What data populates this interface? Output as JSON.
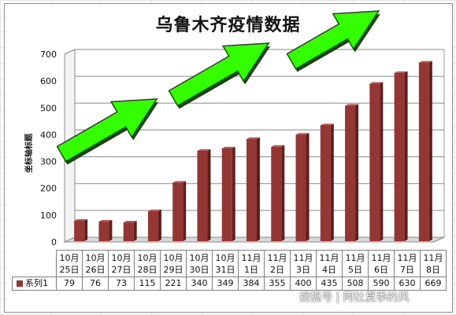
{
  "chart_data": {
    "type": "bar",
    "title": "乌鲁木齐疫情数据",
    "ylabel": "坐标轴标题",
    "xlabel": "",
    "ylim": [
      0,
      700
    ],
    "yticks": [
      0,
      100,
      200,
      300,
      400,
      500,
      600,
      700
    ],
    "grid": true,
    "legend": "data-table",
    "categories": [
      [
        "10月",
        "25日"
      ],
      [
        "10月",
        "26日"
      ],
      [
        "10月",
        "27日"
      ],
      [
        "10月",
        "28日"
      ],
      [
        "10月",
        "29日"
      ],
      [
        "10月",
        "30日"
      ],
      [
        "10月",
        "31日"
      ],
      [
        "11月",
        "1日"
      ],
      [
        "11月",
        "2日"
      ],
      [
        "11月",
        "3日"
      ],
      [
        "11月",
        "4日"
      ],
      [
        "11月",
        "5日"
      ],
      [
        "11月",
        "6日"
      ],
      [
        "11月",
        "7日"
      ],
      [
        "11月",
        "8日"
      ]
    ],
    "series": [
      {
        "name": "系列1",
        "color": "#943634",
        "values": [
          79,
          76,
          73,
          115,
          221,
          340,
          349,
          384,
          355,
          400,
          435,
          508,
          590,
          630,
          669
        ]
      }
    ],
    "annotations": [
      "green-up-arrow",
      "green-up-arrow",
      "green-up-arrow"
    ]
  },
  "watermark": "搜狐号 | 阿杜夏季的风"
}
